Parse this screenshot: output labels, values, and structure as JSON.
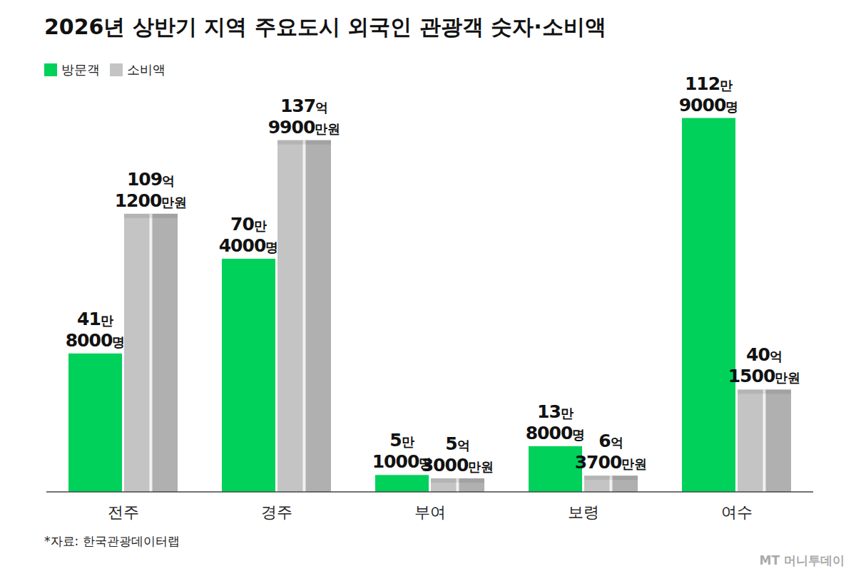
{
  "chart_data": {
    "type": "bar",
    "title": "2026년 상반기 지역 주요도시 외국인 관광객 숫자·소비액",
    "categories": [
      "전주",
      "경주",
      "부여",
      "보령",
      "여수"
    ],
    "series": [
      {
        "name": "방문객",
        "color": "#00d15a",
        "values": [
          418000,
          704000,
          51000,
          138000,
          1129000
        ],
        "value_labels": [
          "41만 8000명",
          "70만 4000명",
          "5만 1000명",
          "13만 8000명",
          "112만 9000명"
        ]
      },
      {
        "name": "소비액",
        "color": "#c4c4c4",
        "axis": "y2",
        "values": [
          10912000000,
          13799000000,
          530000000,
          637000000,
          4015000000
        ],
        "value_labels": [
          "109억 1200만원",
          "137억 9900만원",
          "5억 3000만원",
          "6억 3700만원",
          "40억 1500만원"
        ]
      }
    ],
    "ylim": [
      0,
      1270000
    ],
    "y2lim": [
      0,
      16500000000
    ],
    "tick_labels": false,
    "data_labels": true,
    "legend": "upper left",
    "grid": false,
    "source": "*자료: 한국관광데이터랩",
    "credit": "MT 머니투데이"
  }
}
